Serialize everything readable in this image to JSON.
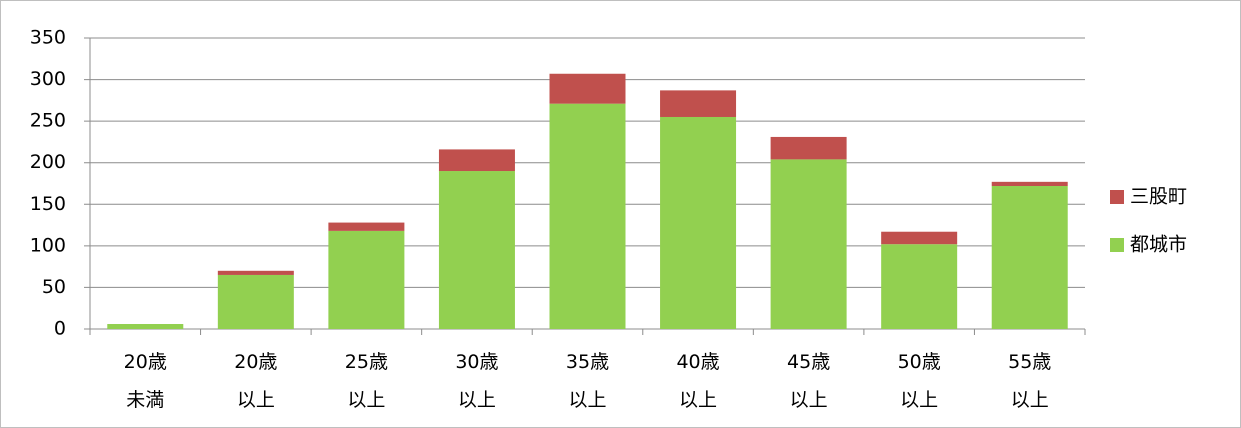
{
  "chart_data": {
    "type": "stacked-bar",
    "categories": [
      "20歳\n未満",
      "20歳\n以上",
      "25歳\n以上",
      "30歳\n以上",
      "35歳\n以上",
      "40歳\n以上",
      "45歳\n以上",
      "50歳\n以上",
      "55歳\n以上"
    ],
    "series": [
      {
        "name": "都城市",
        "color": "#92d050",
        "values": [
          6,
          65,
          118,
          190,
          271,
          255,
          204,
          102,
          172
        ]
      },
      {
        "name": "三股町",
        "color": "#c0504d",
        "values": [
          0,
          5,
          10,
          26,
          36,
          32,
          27,
          15,
          5
        ]
      }
    ],
    "ylim": [
      0,
      350
    ],
    "yticks": [
      0,
      50,
      100,
      150,
      200,
      250,
      300,
      350
    ],
    "grid": true,
    "legend": "right"
  }
}
